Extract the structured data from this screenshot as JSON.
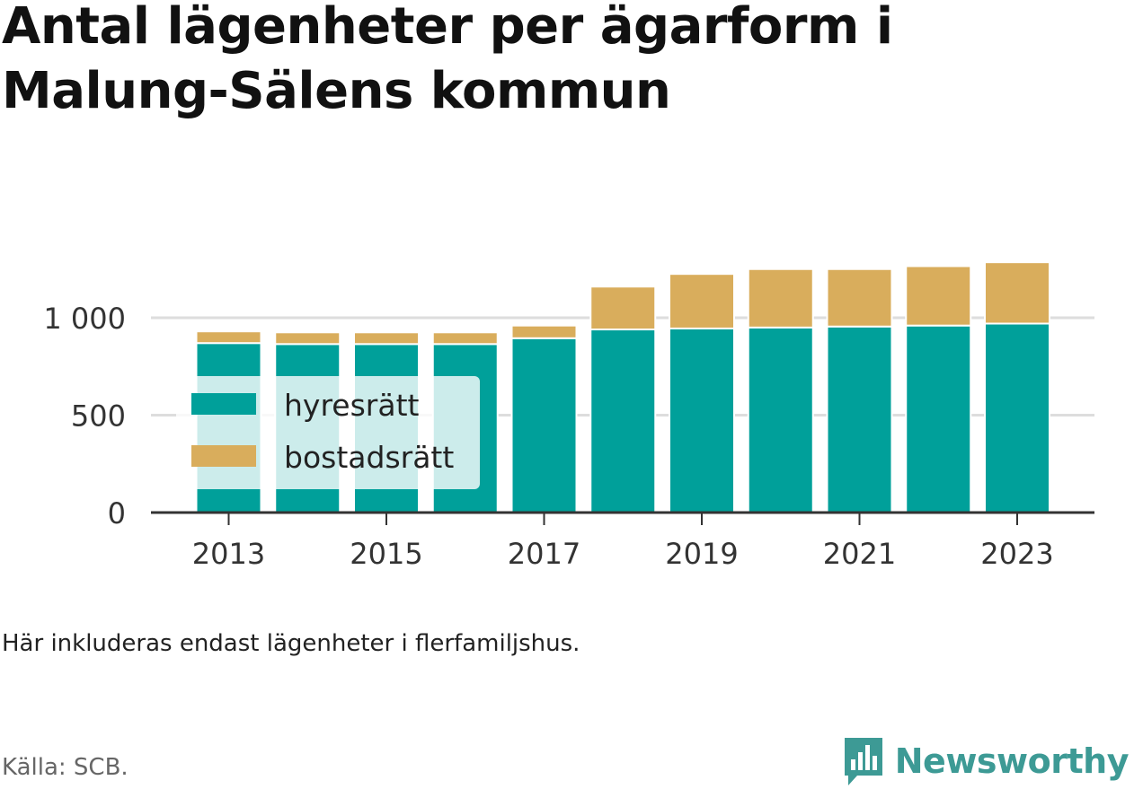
{
  "title": "Antal lägenheter per ägarform i Malung-Sälens kommun",
  "note": "Här inkluderas endast lägenheter i flerfamiljshus.",
  "source": "Källa: SCB.",
  "brand": {
    "name": "Newsworthy",
    "icon": "bar-chart-speech-bubble-icon"
  },
  "colors": {
    "hyresratt": "#00a09a",
    "bostadsratt": "#d9ad5c",
    "grid": "#dddddd",
    "axis": "#333333"
  },
  "chart_data": {
    "type": "bar",
    "stacked": true,
    "title": "Antal lägenheter per ägarform i Malung-Sälens kommun",
    "categories": [
      "2013",
      "2014",
      "2015",
      "2016",
      "2017",
      "2018",
      "2019",
      "2020",
      "2021",
      "2022",
      "2023"
    ],
    "x_tick_labels": [
      "2013",
      "2015",
      "2017",
      "2019",
      "2021",
      "2023"
    ],
    "y_ticks": [
      0,
      500,
      1000
    ],
    "y_tick_labels": [
      "0",
      "500",
      "1 000"
    ],
    "ylim": [
      0,
      1250
    ],
    "grid": true,
    "legend_position": "left",
    "series": [
      {
        "name": "hyresrätt",
        "color": "#00a09a",
        "values": [
          870,
          865,
          865,
          865,
          895,
          940,
          945,
          950,
          955,
          960,
          970
        ]
      },
      {
        "name": "bostadsrätt",
        "color": "#d9ad5c",
        "values": [
          60,
          60,
          60,
          60,
          65,
          220,
          280,
          300,
          295,
          305,
          315
        ]
      }
    ]
  }
}
